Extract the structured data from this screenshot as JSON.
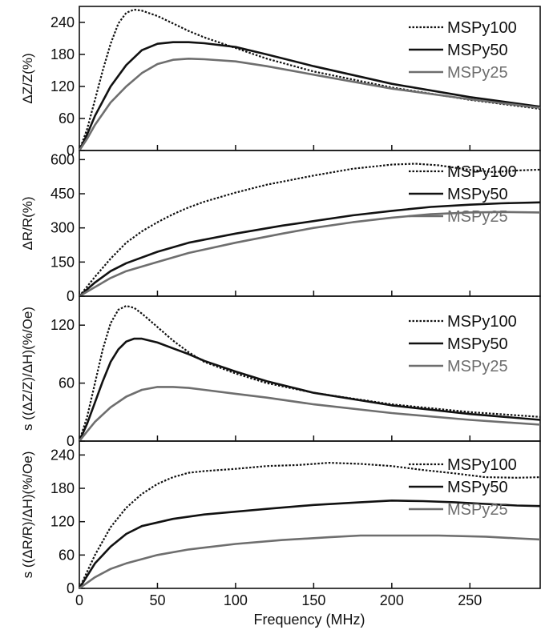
{
  "chart_data": {
    "type": "line",
    "xlabel": "Frequency (MHz)",
    "xlim": [
      0,
      295
    ],
    "xticks": [
      "0",
      "50",
      "100",
      "150",
      "200",
      "250"
    ],
    "grid": false,
    "legend_position": "top-right",
    "series_styles": [
      {
        "name": "MSPy100",
        "color": "#111111",
        "dash": "dotted"
      },
      {
        "name": "MSPy50",
        "color": "#111111",
        "dash": "solid"
      },
      {
        "name": "MSPy25",
        "color": "#6e6e6e",
        "dash": "solid"
      }
    ],
    "panels": [
      {
        "ylabel": "ΔZ/Z(%)",
        "ylim": [
          0,
          270
        ],
        "yticks": [
          "0",
          "60",
          "120",
          "180",
          "240"
        ],
        "legend": [
          "MSPy100",
          "MSPy50",
          "MSPy25"
        ],
        "series": [
          {
            "name": "MSPy100",
            "points": [
              [
                0,
                0
              ],
              [
                5,
                40
              ],
              [
                10,
                95
              ],
              [
                15,
                150
              ],
              [
                20,
                200
              ],
              [
                25,
                238
              ],
              [
                30,
                258
              ],
              [
                35,
                264
              ],
              [
                40,
                262
              ],
              [
                50,
                252
              ],
              [
                60,
                238
              ],
              [
                70,
                224
              ],
              [
                80,
                212
              ],
              [
                100,
                192
              ],
              [
                120,
                172
              ],
              [
                150,
                148
              ],
              [
                200,
                118
              ],
              [
                250,
                95
              ],
              [
                295,
                78
              ]
            ]
          },
          {
            "name": "MSPy50",
            "points": [
              [
                0,
                0
              ],
              [
                5,
                30
              ],
              [
                10,
                65
              ],
              [
                20,
                120
              ],
              [
                30,
                160
              ],
              [
                40,
                188
              ],
              [
                50,
                200
              ],
              [
                60,
                203
              ],
              [
                70,
                203
              ],
              [
                80,
                201
              ],
              [
                100,
                194
              ],
              [
                120,
                180
              ],
              [
                150,
                158
              ],
              [
                200,
                125
              ],
              [
                250,
                100
              ],
              [
                295,
                82
              ]
            ]
          },
          {
            "name": "MSPy25",
            "points": [
              [
                0,
                0
              ],
              [
                5,
                22
              ],
              [
                10,
                48
              ],
              [
                20,
                90
              ],
              [
                30,
                120
              ],
              [
                40,
                145
              ],
              [
                50,
                162
              ],
              [
                60,
                170
              ],
              [
                70,
                172
              ],
              [
                80,
                171
              ],
              [
                100,
                167
              ],
              [
                120,
                158
              ],
              [
                150,
                142
              ],
              [
                200,
                116
              ],
              [
                250,
                96
              ],
              [
                295,
                80
              ]
            ]
          }
        ]
      },
      {
        "ylabel": "ΔR/R(%)",
        "ylim": [
          0,
          640
        ],
        "yticks": [
          "0",
          "150",
          "300",
          "450",
          "600"
        ],
        "legend": [
          "MSPy100",
          "MSPy50",
          "MSPy25"
        ],
        "series": [
          {
            "name": "MSPy100",
            "points": [
              [
                0,
                0
              ],
              [
                10,
                85
              ],
              [
                20,
                165
              ],
              [
                30,
                235
              ],
              [
                40,
                285
              ],
              [
                50,
                325
              ],
              [
                60,
                360
              ],
              [
                70,
                390
              ],
              [
                80,
                415
              ],
              [
                100,
                455
              ],
              [
                120,
                490
              ],
              [
                150,
                530
              ],
              [
                175,
                560
              ],
              [
                200,
                578
              ],
              [
                215,
                582
              ],
              [
                230,
                575
              ],
              [
                250,
                555
              ],
              [
                265,
                545
              ],
              [
                280,
                552
              ],
              [
                295,
                556
              ]
            ]
          },
          {
            "name": "MSPy50",
            "points": [
              [
                0,
                0
              ],
              [
                10,
                60
              ],
              [
                20,
                110
              ],
              [
                30,
                145
              ],
              [
                50,
                195
              ],
              [
                70,
                235
              ],
              [
                100,
                275
              ],
              [
                130,
                310
              ],
              [
                150,
                330
              ],
              [
                175,
                355
              ],
              [
                200,
                375
              ],
              [
                225,
                392
              ],
              [
                250,
                402
              ],
              [
                270,
                408
              ],
              [
                295,
                412
              ]
            ]
          },
          {
            "name": "MSPy25",
            "points": [
              [
                0,
                0
              ],
              [
                10,
                40
              ],
              [
                20,
                80
              ],
              [
                30,
                110
              ],
              [
                50,
                150
              ],
              [
                70,
                190
              ],
              [
                100,
                235
              ],
              [
                130,
                275
              ],
              [
                150,
                300
              ],
              [
                175,
                325
              ],
              [
                200,
                345
              ],
              [
                225,
                360
              ],
              [
                250,
                368
              ],
              [
                270,
                370
              ],
              [
                295,
                368
              ]
            ]
          }
        ]
      },
      {
        "ylabel": "s ((ΔZ/Z)/ΔH)(%/Oe)",
        "ylim": [
          0,
          150
        ],
        "yticks": [
          "0",
          "60",
          "120"
        ],
        "legend": [
          "MSPy100",
          "MSPy50",
          "MSPy25"
        ],
        "series": [
          {
            "name": "MSPy100",
            "points": [
              [
                0,
                0
              ],
              [
                5,
                25
              ],
              [
                10,
                60
              ],
              [
                15,
                95
              ],
              [
                20,
                122
              ],
              [
                25,
                136
              ],
              [
                30,
                140
              ],
              [
                35,
                138
              ],
              [
                40,
                132
              ],
              [
                50,
                118
              ],
              [
                60,
                104
              ],
              [
                70,
                92
              ],
              [
                80,
                82
              ],
              [
                100,
                70
              ],
              [
                120,
                60
              ],
              [
                150,
                50
              ],
              [
                200,
                38
              ],
              [
                250,
                30
              ],
              [
                295,
                25
              ]
            ]
          },
          {
            "name": "MSPy50",
            "points": [
              [
                0,
                0
              ],
              [
                5,
                18
              ],
              [
                10,
                40
              ],
              [
                15,
                62
              ],
              [
                20,
                82
              ],
              [
                25,
                95
              ],
              [
                30,
                103
              ],
              [
                35,
                106
              ],
              [
                40,
                106
              ],
              [
                50,
                102
              ],
              [
                60,
                96
              ],
              [
                70,
                90
              ],
              [
                80,
                83
              ],
              [
                100,
                72
              ],
              [
                120,
                62
              ],
              [
                150,
                50
              ],
              [
                200,
                37
              ],
              [
                250,
                28
              ],
              [
                295,
                22
              ]
            ]
          },
          {
            "name": "MSPy25",
            "points": [
              [
                0,
                0
              ],
              [
                5,
                10
              ],
              [
                10,
                20
              ],
              [
                20,
                35
              ],
              [
                30,
                46
              ],
              [
                40,
                53
              ],
              [
                50,
                56
              ],
              [
                60,
                56
              ],
              [
                70,
                55
              ],
              [
                80,
                53
              ],
              [
                100,
                49
              ],
              [
                120,
                45
              ],
              [
                150,
                38
              ],
              [
                200,
                29
              ],
              [
                250,
                22
              ],
              [
                295,
                17
              ]
            ]
          }
        ]
      },
      {
        "ylabel": "s ((ΔR/R)/ΔH)(%/Oe)",
        "ylim": [
          0,
          265
        ],
        "yticks": [
          "0",
          "60",
          "120",
          "180",
          "240"
        ],
        "legend": [
          "MSPy100",
          "MSPy50",
          "MSPy25"
        ],
        "series": [
          {
            "name": "MSPy100",
            "points": [
              [
                0,
                0
              ],
              [
                10,
                60
              ],
              [
                20,
                110
              ],
              [
                30,
                145
              ],
              [
                40,
                170
              ],
              [
                50,
                188
              ],
              [
                60,
                200
              ],
              [
                70,
                208
              ],
              [
                80,
                211
              ],
              [
                100,
                215
              ],
              [
                120,
                220
              ],
              [
                140,
                222
              ],
              [
                160,
                226
              ],
              [
                180,
                224
              ],
              [
                200,
                220
              ],
              [
                220,
                213
              ],
              [
                240,
                207
              ],
              [
                260,
                200
              ],
              [
                280,
                199
              ],
              [
                295,
                200
              ]
            ]
          },
          {
            "name": "MSPy50",
            "points": [
              [
                0,
                0
              ],
              [
                10,
                45
              ],
              [
                20,
                75
              ],
              [
                30,
                98
              ],
              [
                40,
                112
              ],
              [
                60,
                125
              ],
              [
                80,
                133
              ],
              [
                100,
                138
              ],
              [
                120,
                143
              ],
              [
                150,
                150
              ],
              [
                180,
                155
              ],
              [
                200,
                158
              ],
              [
                220,
                157
              ],
              [
                240,
                155
              ],
              [
                260,
                152
              ],
              [
                280,
                149
              ],
              [
                295,
                148
              ]
            ]
          },
          {
            "name": "MSPy25",
            "points": [
              [
                0,
                0
              ],
              [
                10,
                20
              ],
              [
                20,
                35
              ],
              [
                30,
                45
              ],
              [
                50,
                60
              ],
              [
                70,
                70
              ],
              [
                100,
                80
              ],
              [
                130,
                87
              ],
              [
                160,
                92
              ],
              [
                180,
                95
              ],
              [
                200,
                95
              ],
              [
                230,
                95
              ],
              [
                260,
                93
              ],
              [
                280,
                90
              ],
              [
                295,
                88
              ]
            ]
          }
        ]
      }
    ]
  }
}
